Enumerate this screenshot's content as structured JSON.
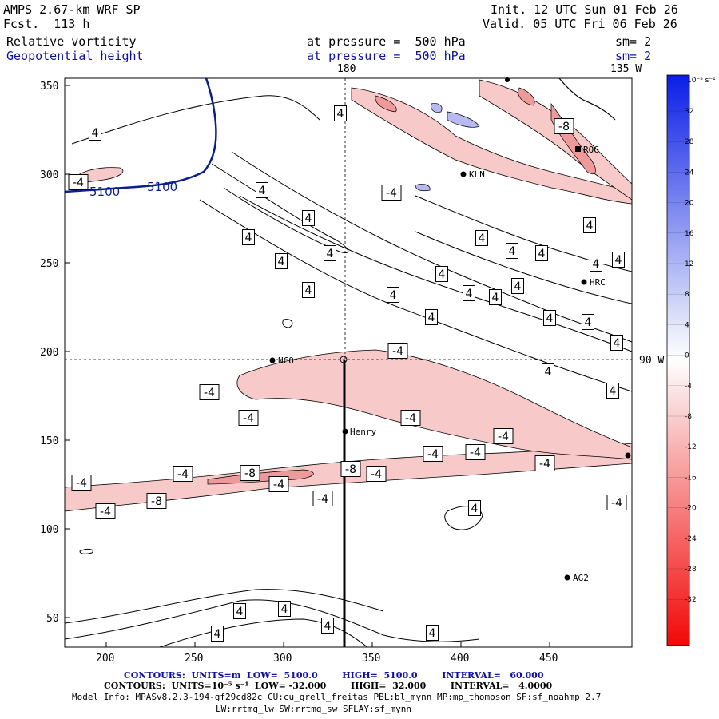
{
  "header": {
    "model": "AMPS 2.67-km WRF SP",
    "forecast": "Fcst.  113 h",
    "init": "Init. 12 UTC Sun 01 Feb 26",
    "valid": "Valid. 05 UTC Fri 06 Feb 26",
    "field1": {
      "name": "Relative vorticity",
      "level": "at pressure =  500 hPa",
      "sm": "sm= 2"
    },
    "field2": {
      "name": "Geopotential height",
      "level": "at pressure =  500 hPa",
      "sm": "sm= 2"
    }
  },
  "map": {
    "x_ticks": [
      "200",
      "250",
      "300",
      "350",
      "400",
      "450"
    ],
    "y_ticks": [
      "350",
      "300",
      "250",
      "200",
      "150",
      "100",
      "50"
    ],
    "top_labels": {
      "lon180": "180",
      "lon135w": "135 W"
    },
    "right_label": "90 W",
    "stations": [
      "NCO",
      "Henry",
      "KLN",
      "HRC",
      "AG2",
      "ROG"
    ],
    "height_contour_label": "5100",
    "vort_labels": {
      "pos": "4",
      "neg4": "-4",
      "neg8": "-8"
    }
  },
  "colorbar": {
    "unit": "10⁻⁵ s⁻¹",
    "levels": [
      "32",
      "28",
      "24",
      "20",
      "16",
      "12",
      "8",
      "4",
      "0",
      "-4",
      "-8",
      "-12",
      "-16",
      "-20",
      "-24",
      "-28",
      "-32"
    ]
  },
  "footer": {
    "line1": "CONTOURS:  UNITS=m  LOW=  5100.0        HIGH=  5100.0        INTERVAL=   60.000",
    "line2": "CONTOURS:  UNITS=10⁻⁵ s⁻¹  LOW= -32.000        HIGH=  32.000        INTERVAL=   4.0000",
    "model_info": "Model Info: MPASv8.2.3-194-gf29cd82c CU:cu_grell_freitas PBL:bl_mynn MP:mp_thompson SF:sf_noahmp 2.7",
    "model_info2": "LW:rrtmg_lw SW:rrtmg_sw SFLAY:sf_mynn"
  },
  "colors": {
    "height_contour": "#0a1e8c",
    "neg_fill": "#f4b8b8",
    "pos_fill": "#8c8ce6"
  }
}
